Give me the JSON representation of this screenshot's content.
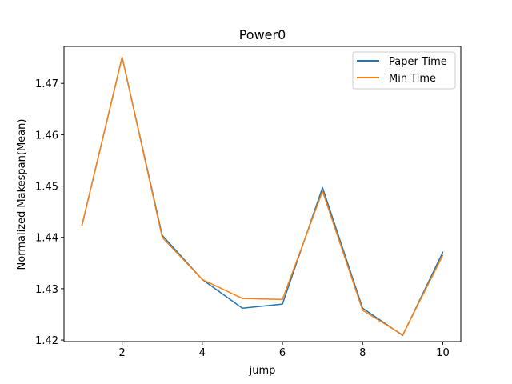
{
  "chart_data": {
    "type": "line",
    "title": "Power0",
    "xlabel": "jump",
    "ylabel": "Normalized Makespan(Mean)",
    "xlim": [
      0.55,
      10.45
    ],
    "ylim": [
      1.4197,
      1.4772
    ],
    "xticks": [
      2,
      4,
      6,
      8,
      10
    ],
    "yticks": [
      1.42,
      1.43,
      1.44,
      1.45,
      1.46,
      1.47
    ],
    "ytick_labels": [
      "1.42",
      "1.43",
      "1.44",
      "1.45",
      "1.46",
      "1.47"
    ],
    "x": [
      1,
      2,
      3,
      4,
      5,
      6,
      7,
      8,
      9,
      10
    ],
    "series": [
      {
        "name": "Paper Time",
        "color": "#1f77b4",
        "values": [
          1.4424,
          1.4751,
          1.4404,
          1.4318,
          1.4262,
          1.427,
          1.4497,
          1.4262,
          1.4209,
          1.4371
        ]
      },
      {
        "name": "Min Time",
        "color": "#ff7f0e",
        "values": [
          1.4424,
          1.4751,
          1.44,
          1.4318,
          1.4281,
          1.4279,
          1.449,
          1.4258,
          1.421,
          1.4365
        ]
      }
    ],
    "grid": false,
    "legend": "upper right"
  }
}
